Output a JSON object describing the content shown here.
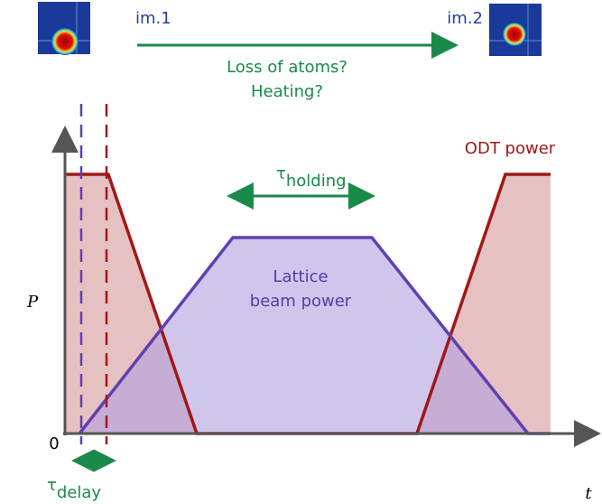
{
  "images": [
    {
      "label": "im.1"
    },
    {
      "label": "im.2"
    }
  ],
  "arrow_caption": [
    "Loss of atoms?",
    "Heating?"
  ],
  "curves": {
    "odt": "ODT power",
    "lattice": [
      "Lattice",
      "beam power"
    ]
  },
  "tau_holding": {
    "symbol": "τ",
    "subscript": "holding"
  },
  "tau_delay": {
    "symbol": "τ",
    "subscript": "delay"
  },
  "axes": {
    "y_label": "P",
    "x_label": "t",
    "origin": "0"
  }
}
